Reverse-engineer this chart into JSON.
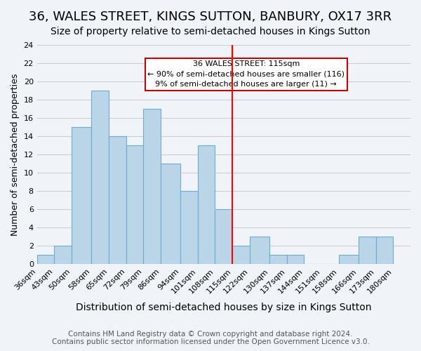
{
  "title": "36, WALES STREET, KINGS SUTTON, BANBURY, OX17 3RR",
  "subtitle": "Size of property relative to semi-detached houses in Kings Sutton",
  "xlabel": "Distribution of semi-detached houses by size in Kings Sutton",
  "ylabel": "Number of semi-detached properties",
  "bin_labels": [
    "36sqm",
    "43sqm",
    "50sqm",
    "58sqm",
    "65sqm",
    "72sqm",
    "79sqm",
    "86sqm",
    "94sqm",
    "101sqm",
    "108sqm",
    "115sqm",
    "122sqm",
    "130sqm",
    "137sqm",
    "144sqm",
    "151sqm",
    "158sqm",
    "166sqm",
    "173sqm",
    "180sqm"
  ],
  "bin_edges": [
    36,
    43,
    50,
    58,
    65,
    72,
    79,
    86,
    94,
    101,
    108,
    115,
    122,
    130,
    137,
    144,
    151,
    158,
    166,
    173,
    180
  ],
  "counts": [
    1,
    2,
    15,
    19,
    14,
    13,
    17,
    11,
    8,
    13,
    6,
    2,
    3,
    1,
    1,
    0,
    0,
    1,
    3,
    3
  ],
  "bar_color": "#bad4e8",
  "bar_edge_color": "#6aaed6",
  "grid_color": "#cccccc",
  "reference_line_x": 115,
  "reference_label": "36 WALES STREET: 115sqm",
  "annotation_line1": "← 90% of semi-detached houses are smaller (116)",
  "annotation_line2": "9% of semi-detached houses are larger (11) →",
  "annotation_box_color": "#ffffff",
  "annotation_box_edge": "#cc0000",
  "footer_line1": "Contains HM Land Registry data © Crown copyright and database right 2024.",
  "footer_line2": "Contains public sector information licensed under the Open Government Licence v3.0.",
  "ylim": [
    0,
    24
  ],
  "title_fontsize": 13,
  "subtitle_fontsize": 10,
  "xlabel_fontsize": 10,
  "ylabel_fontsize": 9,
  "tick_fontsize": 8,
  "footer_fontsize": 7.5,
  "background_color": "#f0f4f8"
}
